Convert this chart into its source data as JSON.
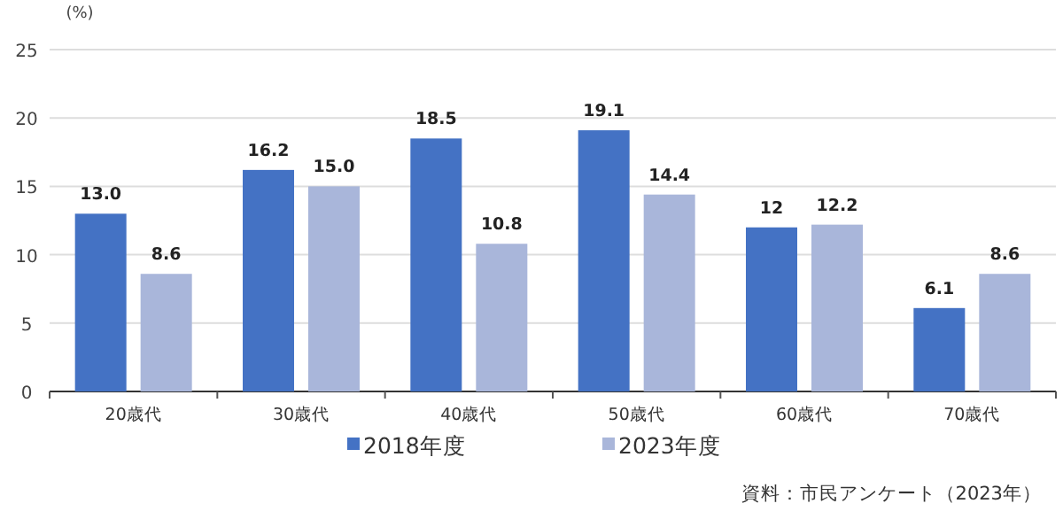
{
  "chart_data": {
    "type": "bar",
    "ylabel": "(%)",
    "categories": [
      "20歳代",
      "30歳代",
      "40歳代",
      "50歳代",
      "60歳代",
      "70歳代"
    ],
    "series": [
      {
        "name": "2018年度",
        "color": "#4472c4",
        "values": [
          13.0,
          16.2,
          18.5,
          19.1,
          12,
          6.1
        ],
        "value_labels": [
          "13.0",
          "16.2",
          "18.5",
          "19.1",
          "12",
          "6.1"
        ]
      },
      {
        "name": "2023年度",
        "color": "#a9b6da",
        "values": [
          8.6,
          15.0,
          10.8,
          14.4,
          12.2,
          8.6
        ],
        "value_labels": [
          "8.6",
          "15.0",
          "10.8",
          "14.4",
          "12.2",
          "8.6"
        ]
      }
    ],
    "ylim": [
      0,
      25
    ],
    "yticks": [
      0,
      5,
      10,
      15,
      20,
      25
    ],
    "grid": "y",
    "legend": "bottom",
    "annotations": [
      "資料：市民アンケート（2023年）"
    ]
  }
}
